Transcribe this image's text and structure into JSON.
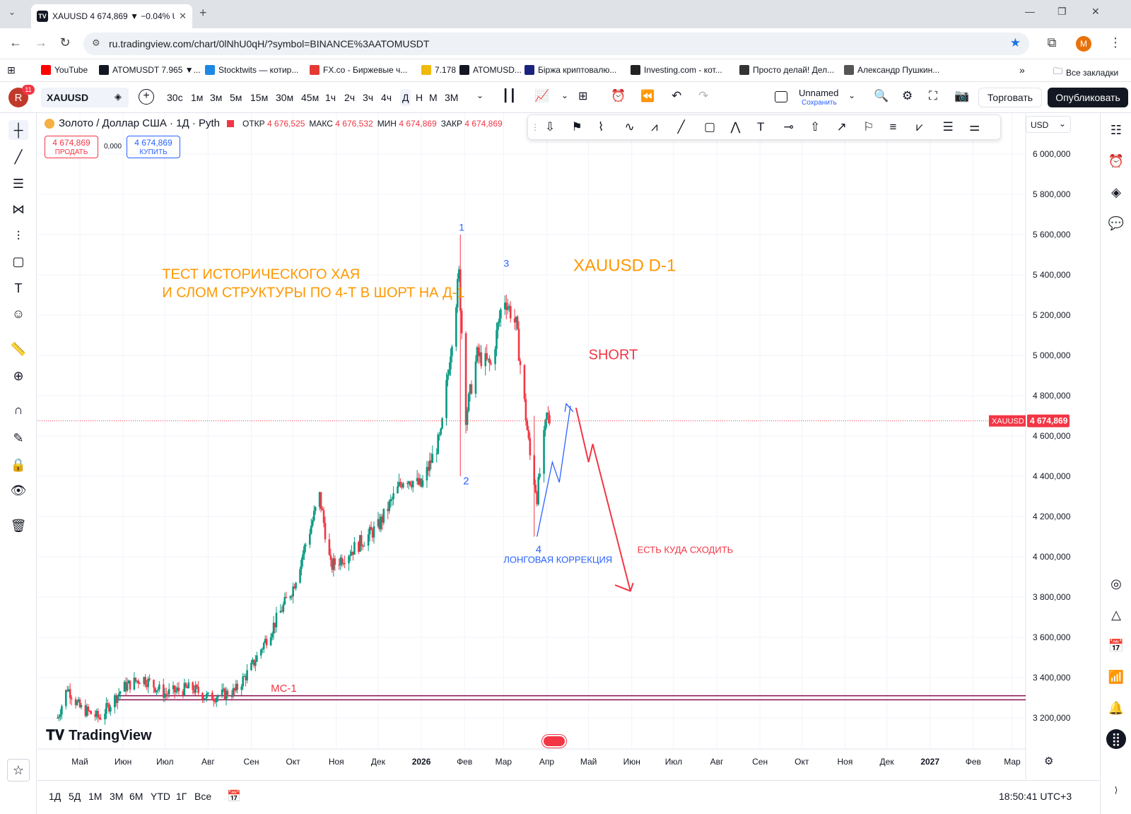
{
  "browser": {
    "tab_title": "XAUUSD 4 674,869 ▼ −0.04% U",
    "tab_fav": "TV",
    "new_tab": "+",
    "url": "ru.tradingview.com/chart/0lNhU0qH/?symbol=BINANCE%3AATOMUSDT",
    "profile": "M",
    "bookmarks": [
      {
        "label": "YouTube",
        "color": "#ff0000"
      },
      {
        "label": "ATOMUSDT 7.965 ▼...",
        "color": "#131722"
      },
      {
        "label": "Stocktwits — котир...",
        "color": "#1e88e5"
      },
      {
        "label": "FX.co - Биржевые ч...",
        "color": "#e53935"
      },
      {
        "label": "7.178",
        "color": "#f0b90b"
      },
      {
        "label": "ATOMUSD...",
        "color": "#131722"
      },
      {
        "label": "Біржа криптовалю...",
        "color": "#1a237e"
      },
      {
        "label": "Investing.com - кот...",
        "color": "#222222"
      },
      {
        "label": "Просто делай! Дел...",
        "color": "#333333"
      },
      {
        "label": "Александр Пушкин...",
        "color": "#555555"
      }
    ],
    "all_bookmarks": "Все закладки"
  },
  "toolbar": {
    "avatar": "R",
    "avatar_badge": "11",
    "symbol": "XAUUSD",
    "intervals": [
      "30с",
      "1м",
      "3м",
      "5м",
      "15м",
      "30м",
      "45м",
      "1ч",
      "2ч",
      "3ч",
      "4ч",
      "Д",
      "Н",
      "М",
      "3М"
    ],
    "active_interval": "Д",
    "layout_name": "Unnamed",
    "save_label": "Сохранить",
    "trade_label": "Торговать",
    "publish_label": "Опубликовать"
  },
  "legend": {
    "title": "Золото / Доллар США · 1Д · Pyth",
    "open_label": "ОТКР",
    "open": "4 676,525",
    "high_label": "МАКС",
    "high": "4 676,532",
    "low_label": "МИН",
    "low": "4 674,869",
    "close_label": "ЗАКР",
    "close": "4 674,869",
    "sell_price": "4 674,869",
    "sell_label": "ПРОДАТЬ",
    "spread": "0,000",
    "buy_price": "4 674,869",
    "buy_label": "КУПИТЬ"
  },
  "currency": "USD",
  "price_tag": {
    "symbol": "XAUUSD",
    "value": "4 674,869"
  },
  "annotations": {
    "headline_1": "ТЕСТ ИСТОРИЧЕСКОГО ХАЯ",
    "headline_2": "И СЛОМ СТРУКТУРЫ ПО 4-Т В ШОРТ НА Д-1",
    "chart_title": "XAUUSD D-1",
    "short": "SHORT",
    "wave_1": "1",
    "wave_2": "2",
    "wave_3": "3",
    "wave_4": "4",
    "long_correction": "ЛОНГОВАЯ КОРРЕКЦИЯ",
    "target_note": "ЕСТЬ КУДА СХОДИТЬ",
    "mc_label": "MC-1"
  },
  "brand": "TradingView",
  "bottom": {
    "ranges": [
      "1Д",
      "5Д",
      "1М",
      "3М",
      "6М",
      "YTD",
      "1Г",
      "Все"
    ],
    "clock": "18:50:41 UTC+3"
  },
  "colors": {
    "up": "#089981",
    "down": "#f23645",
    "orange": "#ff9800",
    "blue": "#2962ff",
    "red": "#f23645"
  },
  "chart_data": {
    "type": "candlestick",
    "ylim": [
      3100000,
      6100000
    ],
    "y_ticks": [
      "6 000,000",
      "5 800,000",
      "5 600,000",
      "5 400,000",
      "5 200,000",
      "5 000,000",
      "4 800,000",
      "4 600,000",
      "4 400,000",
      "4 200,000",
      "4 000,000",
      "3 800,000",
      "3 600,000",
      "3 400,000",
      "3 200,000"
    ],
    "y_tick_values": [
      6000000,
      5800000,
      5600000,
      5400000,
      5200000,
      5000000,
      4800000,
      4600000,
      4400000,
      4200000,
      4000000,
      3800000,
      3600000,
      3400000,
      3200000
    ],
    "x_ticks": [
      "Май",
      "Июн",
      "Июл",
      "Авг",
      "Сен",
      "Окт",
      "Ноя",
      "Дек",
      "2026",
      "Фев",
      "Мар",
      "Апр",
      "Май",
      "Июн",
      "Июл",
      "Авг",
      "Сен",
      "Окт",
      "Ноя",
      "Дек",
      "2027",
      "Фев",
      "Мар"
    ],
    "x_tick_dates": [
      "2025-05-01",
      "2025-06-01",
      "2025-07-01",
      "2025-08-01",
      "2025-09-01",
      "2025-10-01",
      "2025-11-01",
      "2025-12-01",
      "2026-01-01",
      "2026-02-01",
      "2026-03-01",
      "2026-04-01",
      "2026-05-01",
      "2026-06-01",
      "2026-07-01",
      "2026-08-01",
      "2026-09-01",
      "2026-10-01",
      "2026-11-01",
      "2026-12-01",
      "2027-01-01",
      "2027-02-01",
      "2027-03-01"
    ],
    "last_price": 4674869,
    "mc1_levels": [
      3310000,
      3290000
    ],
    "close_anchors": [
      [
        "2025-04-15",
        3200000
      ],
      [
        "2025-04-22",
        3350000
      ],
      [
        "2025-05-01",
        3250000
      ],
      [
        "2025-05-15",
        3200000
      ],
      [
        "2025-06-01",
        3350000
      ],
      [
        "2025-06-15",
        3400000
      ],
      [
        "2025-07-01",
        3320000
      ],
      [
        "2025-07-20",
        3350000
      ],
      [
        "2025-08-01",
        3300000
      ],
      [
        "2025-08-20",
        3330000
      ],
      [
        "2025-09-01",
        3450000
      ],
      [
        "2025-09-20",
        3700000
      ],
      [
        "2025-10-01",
        3850000
      ],
      [
        "2025-10-20",
        4300000
      ],
      [
        "2025-10-28",
        3950000
      ],
      [
        "2025-11-15",
        4050000
      ],
      [
        "2025-12-01",
        4150000
      ],
      [
        "2025-12-20",
        4400000
      ],
      [
        "2026-01-01",
        4350000
      ],
      [
        "2026-01-15",
        4600000
      ],
      [
        "2026-01-28",
        5400000
      ],
      [
        "2026-02-02",
        4700000
      ],
      [
        "2026-02-10",
        5000000
      ],
      [
        "2026-02-20",
        4950000
      ],
      [
        "2026-03-01",
        5300000
      ],
      [
        "2026-03-10",
        5150000
      ],
      [
        "2026-03-20",
        4500000
      ],
      [
        "2026-03-25",
        4300000
      ],
      [
        "2026-04-01",
        4700000
      ],
      [
        "2026-04-03",
        4674869
      ]
    ]
  }
}
